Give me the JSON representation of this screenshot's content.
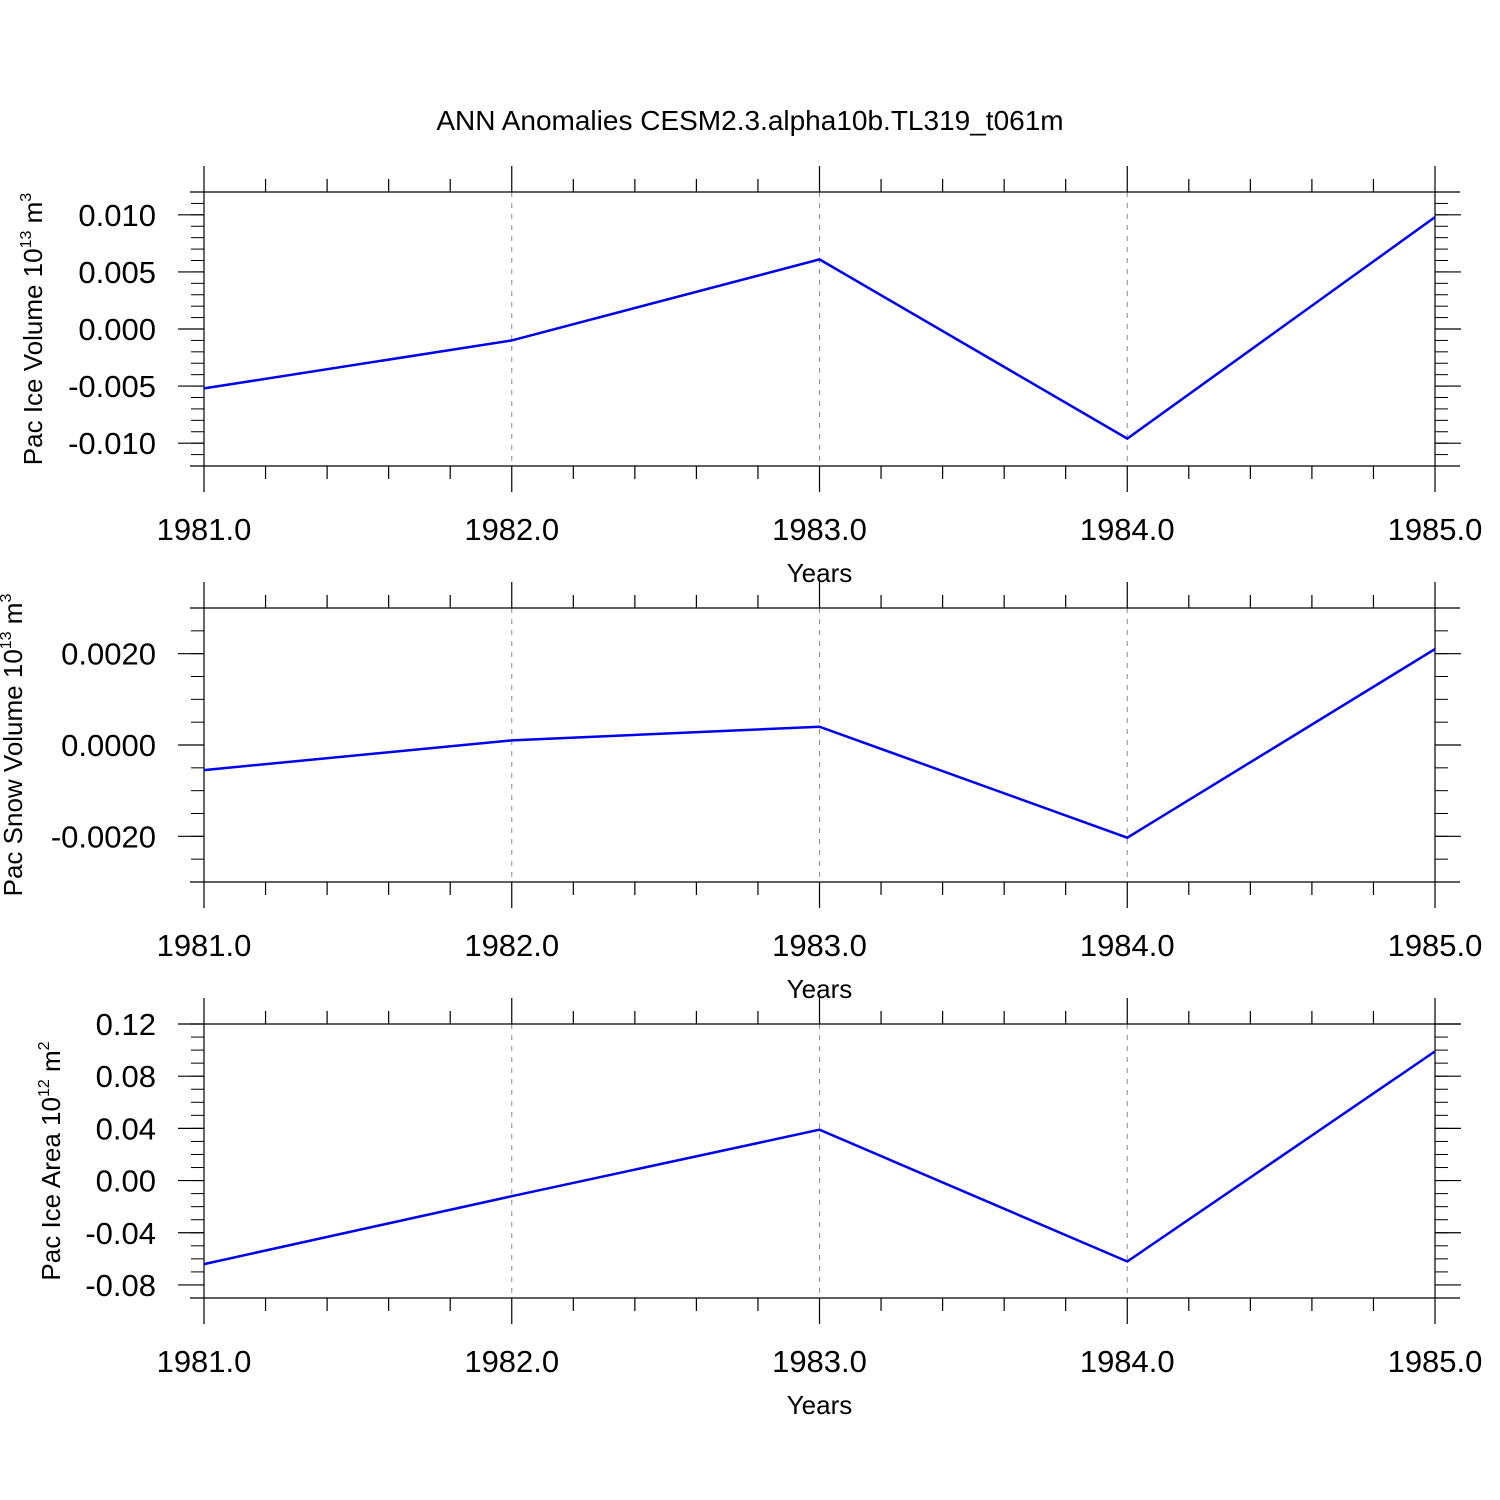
{
  "title": "ANN Anomalies CESM2.3.alpha10b.TL319_t061m",
  "colors": {
    "line": "#0000ee",
    "axis": "#000000",
    "grid": "#8c8c8c"
  },
  "chart_data": [
    {
      "type": "line",
      "xlabel": "Years",
      "ylabel_main": "Pac Ice Volume 10",
      "ylabel_exp": "13",
      "ylabel_unit": " m",
      "ylabel_unit_exp": "3",
      "x": [
        1981.0,
        1982.0,
        1983.0,
        1984.0,
        1985.0
      ],
      "series": [
        {
          "values": [
            -0.0052,
            -0.001,
            0.0061,
            -0.0096,
            0.0098
          ]
        }
      ],
      "xlim": [
        1981.0,
        1985.0
      ],
      "ylim": [
        -0.012,
        0.012
      ],
      "xticks": [
        1981.0,
        1982.0,
        1983.0,
        1984.0,
        1985.0
      ],
      "xtick_labels": [
        "1981.0",
        "1982.0",
        "1983.0",
        "1984.0",
        "1985.0"
      ],
      "yticks": [
        -0.01,
        -0.005,
        0.0,
        0.005,
        0.01
      ],
      "ytick_labels": [
        "-0.010",
        "-0.005",
        "0.000",
        "0.005",
        "0.010"
      ],
      "yminor_step": 0.001,
      "xgrid": "dashed"
    },
    {
      "type": "line",
      "xlabel": "Years",
      "ylabel_main": "Pac Snow Volume 10",
      "ylabel_exp": "13",
      "ylabel_unit": " m",
      "ylabel_unit_exp": "3",
      "x": [
        1981.0,
        1982.0,
        1983.0,
        1984.0,
        1985.0
      ],
      "series": [
        {
          "values": [
            -0.00055,
            0.0001,
            0.0004,
            -0.00203,
            0.0021
          ]
        }
      ],
      "xlim": [
        1981.0,
        1985.0
      ],
      "ylim": [
        -0.003,
        0.003
      ],
      "xticks": [
        1981.0,
        1982.0,
        1983.0,
        1984.0,
        1985.0
      ],
      "xtick_labels": [
        "1981.0",
        "1982.0",
        "1983.0",
        "1984.0",
        "1985.0"
      ],
      "yticks": [
        -0.002,
        0.0,
        0.002
      ],
      "ytick_labels": [
        "-0.0020",
        "0.0000",
        "0.0020"
      ],
      "yminor_step": 0.0005,
      "xgrid": "dashed"
    },
    {
      "type": "line",
      "xlabel": "Years",
      "ylabel_main": "Pac Ice Area 10",
      "ylabel_exp": "12",
      "ylabel_unit": " m",
      "ylabel_unit_exp": "2",
      "x": [
        1981.0,
        1982.0,
        1983.0,
        1984.0,
        1985.0
      ],
      "series": [
        {
          "values": [
            -0.064,
            -0.012,
            0.039,
            -0.062,
            0.099
          ]
        }
      ],
      "xlim": [
        1981.0,
        1985.0
      ],
      "ylim": [
        -0.09,
        0.12
      ],
      "xticks": [
        1981.0,
        1982.0,
        1983.0,
        1984.0,
        1985.0
      ],
      "xtick_labels": [
        "1981.0",
        "1982.0",
        "1983.0",
        "1984.0",
        "1985.0"
      ],
      "yticks": [
        -0.08,
        -0.04,
        0.0,
        0.04,
        0.08,
        0.12
      ],
      "ytick_labels": [
        "-0.08",
        "-0.04",
        "0.00",
        "0.04",
        "0.08",
        "0.12"
      ],
      "yminor_step": 0.01,
      "xgrid": "dashed"
    }
  ]
}
